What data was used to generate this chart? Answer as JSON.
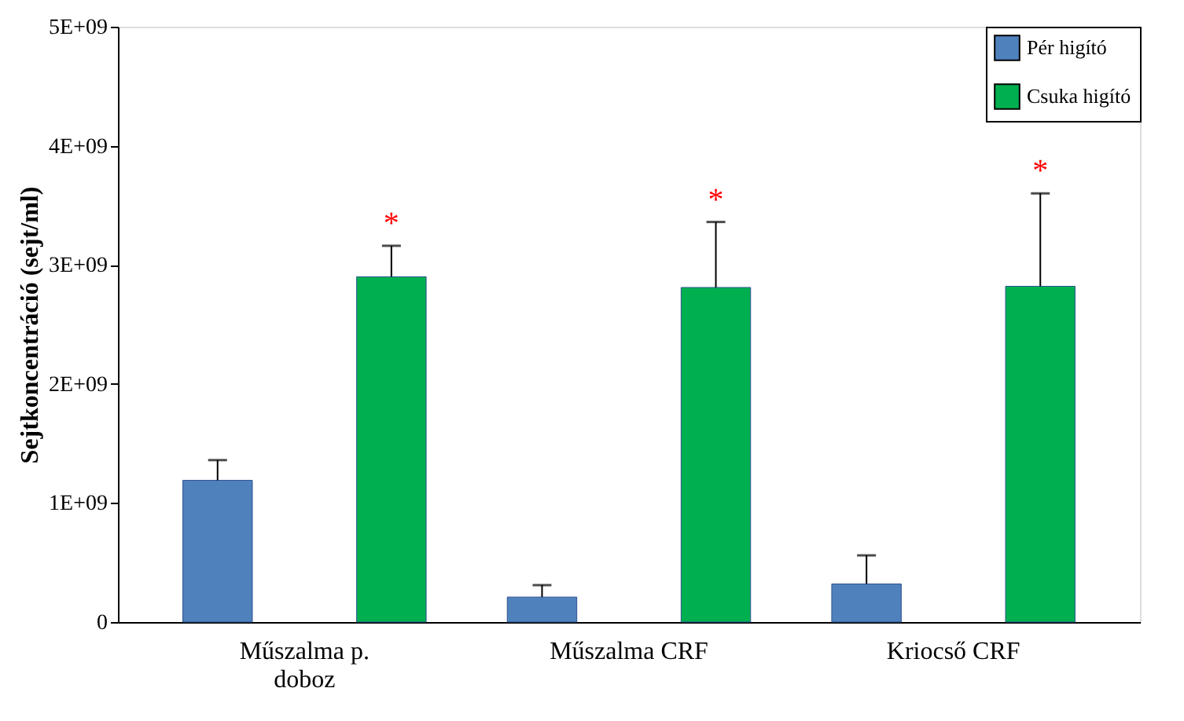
{
  "chart_data": {
    "type": "bar",
    "ylabel": "Sejtkoncentráció (sejt/ml)",
    "categories": [
      "Műszalma p. doboz",
      "Műszalma CRF",
      "Kriocső CRF"
    ],
    "series": [
      {
        "name": "Pér higító",
        "color": "#4f81bd",
        "values": [
          1190000000.0,
          210000000.0,
          320000000.0
        ],
        "errors": [
          [
            1190000000.0,
            1360000000.0
          ],
          [
            210000000.0,
            310000000.0
          ],
          [
            320000000.0,
            560000000.0
          ]
        ]
      },
      {
        "name": "Csuka higító",
        "color": "#00b050",
        "values": [
          2900000000.0,
          2810000000.0,
          2820000000.0
        ],
        "errors": [
          [
            2900000000.0,
            3160000000.0
          ],
          [
            2810000000.0,
            3360000000.0
          ],
          [
            2820000000.0,
            3600000000.0
          ]
        ]
      }
    ],
    "ylim": [
      0,
      5000000000.0
    ],
    "yticks": [
      0,
      {
        "value": 1000000000.0,
        "label": "1E+09"
      },
      {
        "value": 2000000000.0,
        "label": "2E+09"
      },
      {
        "value": 3000000000.0,
        "label": "3E+09"
      },
      {
        "value": 4000000000.0,
        "label": "4E+09"
      },
      {
        "value": 5000000000.0,
        "label": "5E+09"
      }
    ],
    "annotations": [
      "*",
      "*",
      "*"
    ],
    "grid": false,
    "legend": "top right"
  }
}
